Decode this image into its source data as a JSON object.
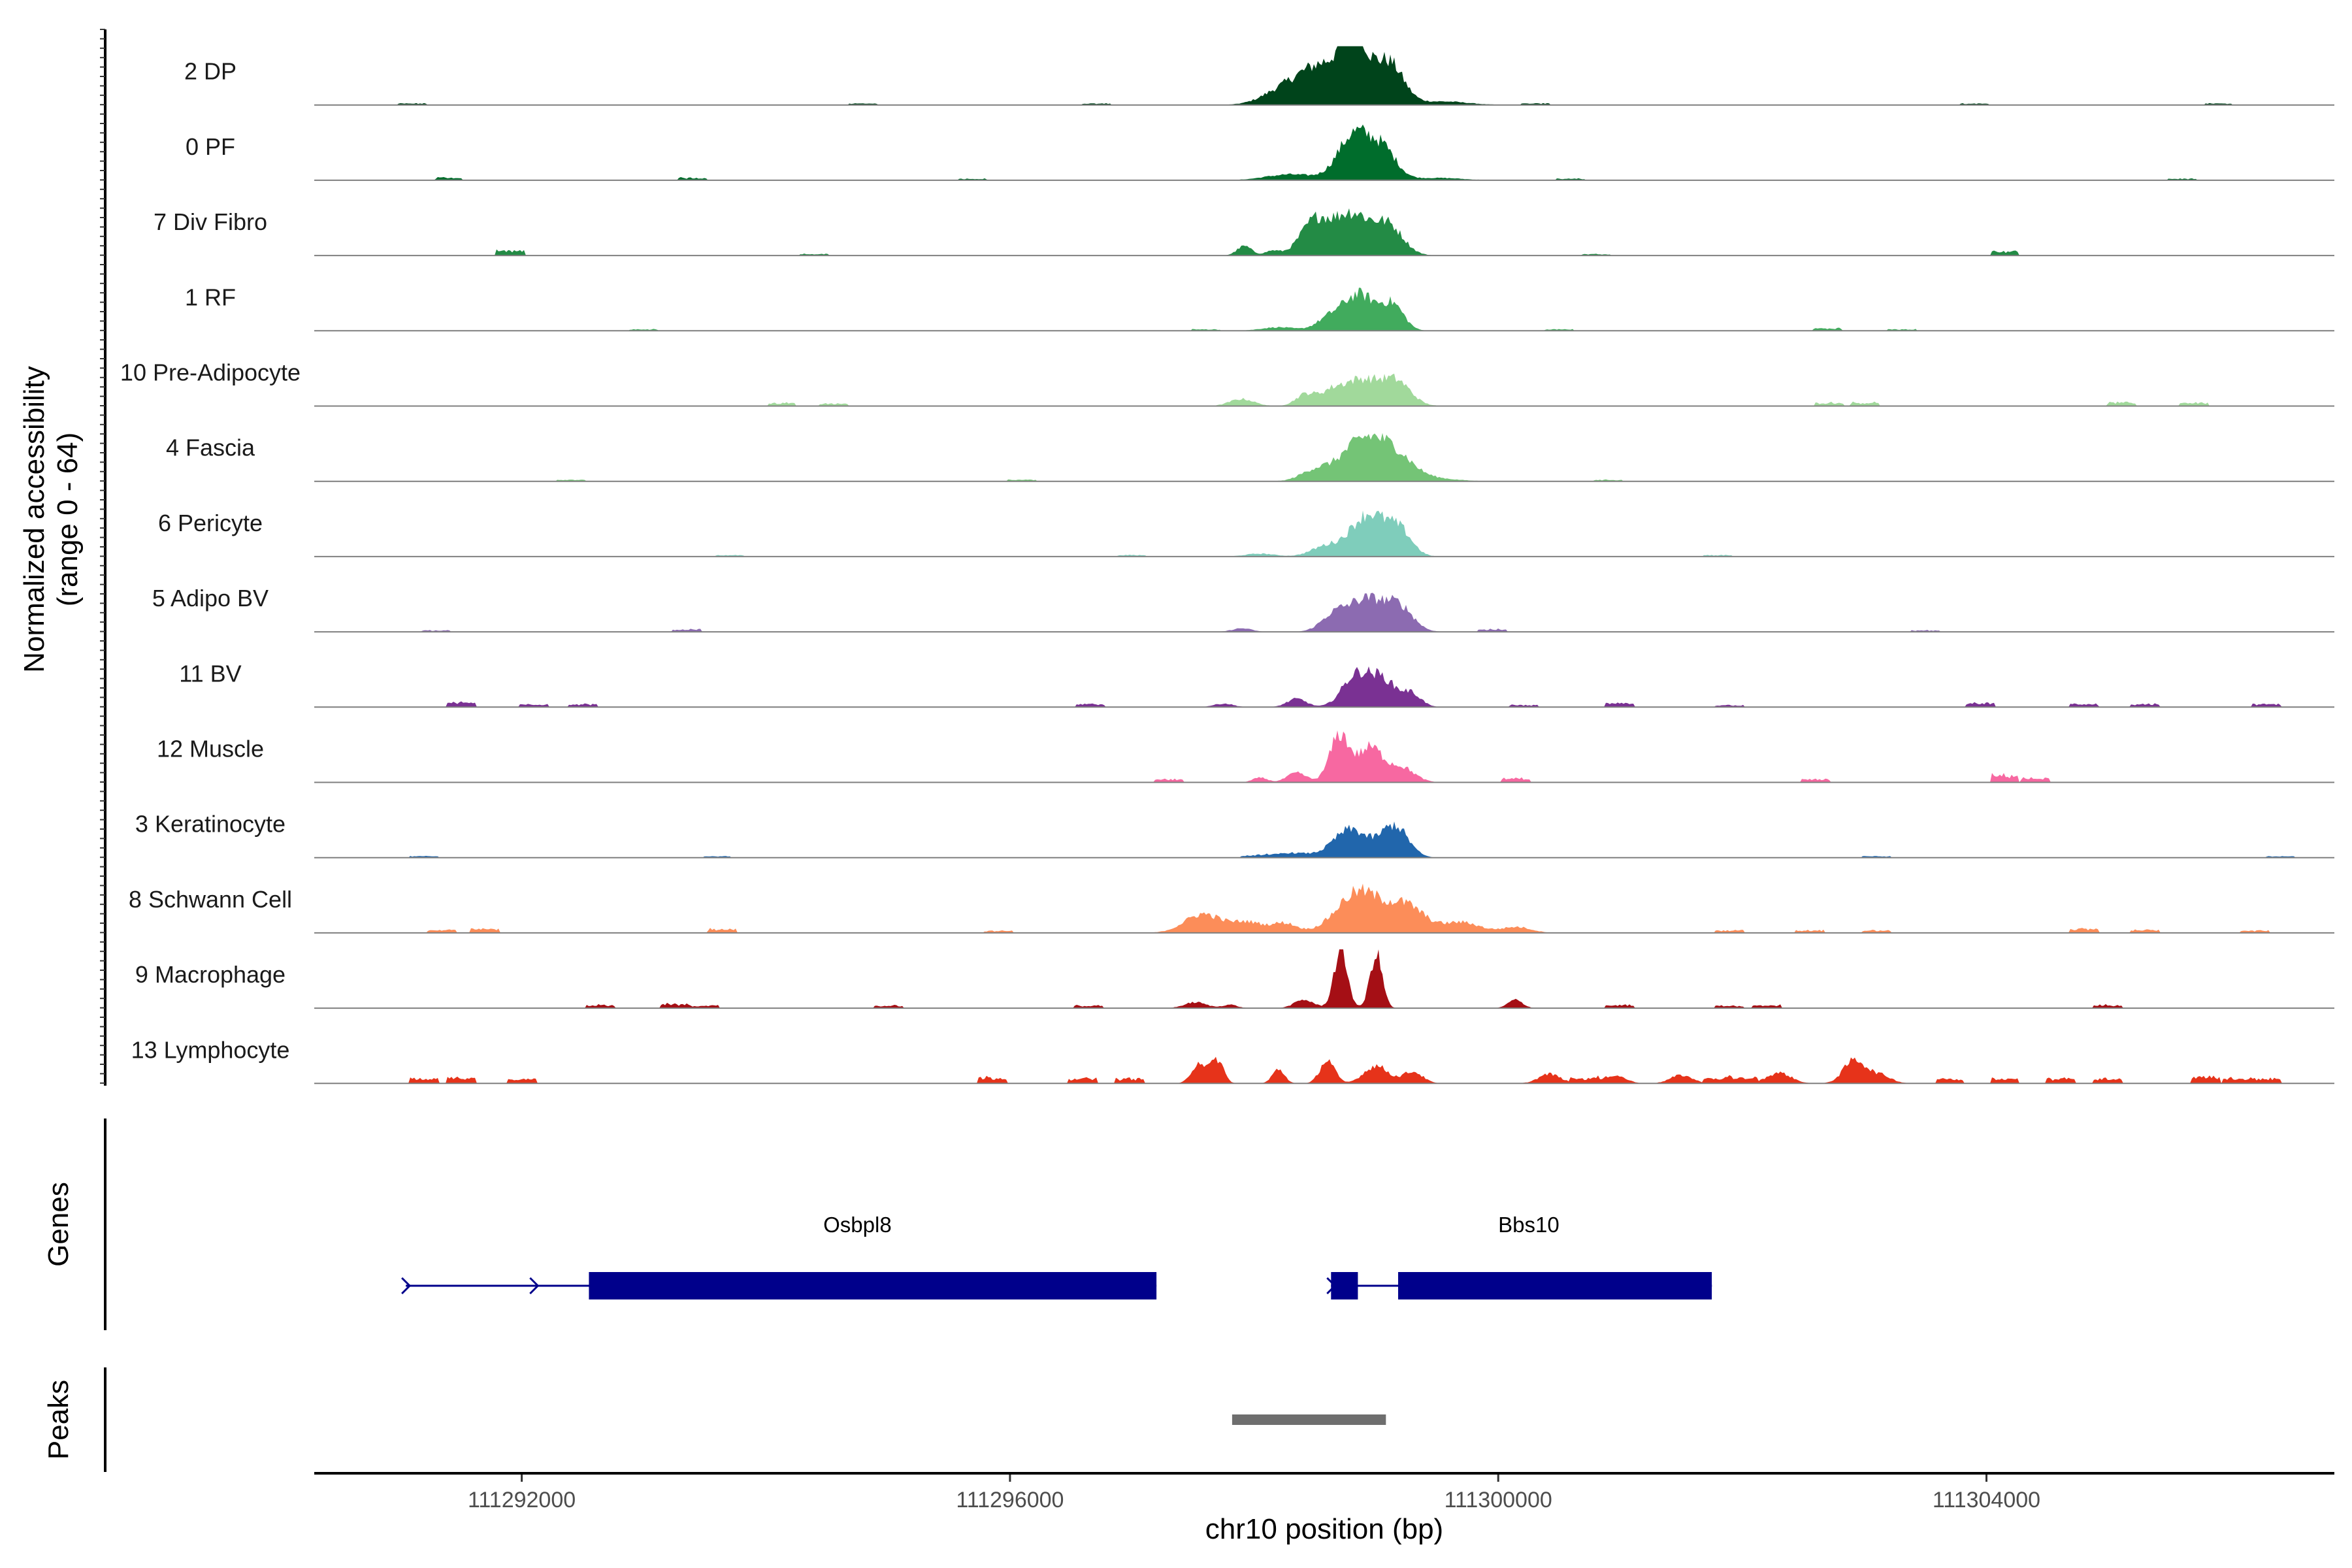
{
  "chart_data": {
    "type": "area",
    "title": "",
    "ylabel_line1": "Normalized accessibility",
    "ylabel_line2": "(range 0 - 64)",
    "yrange": [
      0,
      64
    ],
    "xlabel": "chr10 position (bp)",
    "xlim": [
      111290300,
      111306850
    ],
    "xticks": [
      {
        "value": 111292000,
        "label": "111292000"
      },
      {
        "value": 111296000,
        "label": "111296000"
      },
      {
        "value": 111300000,
        "label": "111300000"
      },
      {
        "value": 111304000,
        "label": "111304000"
      }
    ],
    "tracks": [
      {
        "name": "2 DP",
        "color": "#00441b",
        "peaks": [
          [
            111298580,
            70,
            230
          ],
          [
            111298820,
            94,
            95
          ],
          [
            111299100,
            70,
            120
          ],
          [
            111298200,
            14,
            160
          ],
          [
            111299550,
            6,
            200
          ]
        ],
        "noise": [
          [
            111291100,
            3
          ],
          [
            111294800,
            3
          ],
          [
            111296700,
            3
          ],
          [
            111300300,
            3
          ],
          [
            111303900,
            3
          ],
          [
            111305900,
            3
          ]
        ]
      },
      {
        "name": "0 PF",
        "color": "#006d2c",
        "peaks": [
          [
            111298820,
            78,
            130
          ],
          [
            111299060,
            48,
            110
          ],
          [
            111298300,
            10,
            200
          ],
          [
            111299500,
            4,
            200
          ]
        ],
        "noise": [
          [
            111291400,
            5
          ],
          [
            111293400,
            5
          ],
          [
            111295700,
            3
          ],
          [
            111300600,
            3
          ],
          [
            111305600,
            3
          ]
        ]
      },
      {
        "name": "7 Div Fibro",
        "color": "#238b45",
        "peaks": [
          [
            111298500,
            58,
            120
          ],
          [
            111298800,
            70,
            140
          ],
          [
            111299100,
            50,
            120
          ],
          [
            111297920,
            16,
            60
          ],
          [
            111298150,
            8,
            60
          ]
        ],
        "noise": [
          [
            111291900,
            9
          ],
          [
            111304150,
            9
          ],
          [
            111294400,
            3
          ],
          [
            111300800,
            3
          ]
        ]
      },
      {
        "name": "1 RF",
        "color": "#41ab5d",
        "peaks": [
          [
            111298860,
            62,
            140
          ],
          [
            111299140,
            40,
            90
          ],
          [
            111298600,
            16,
            100
          ],
          [
            111298200,
            6,
            140
          ]
        ],
        "noise": [
          [
            111293000,
            3
          ],
          [
            111297600,
            3
          ],
          [
            111300500,
            3
          ],
          [
            111302700,
            5
          ],
          [
            111303300,
            3
          ]
        ]
      },
      {
        "name": "10 Pre-Adipocyte",
        "color": "#a1d99b",
        "peaks": [
          [
            111298880,
            46,
            200
          ],
          [
            111299180,
            30,
            110
          ],
          [
            111297900,
            12,
            100
          ],
          [
            111298420,
            18,
            80
          ],
          [
            111298620,
            10,
            80
          ]
        ],
        "noise": [
          [
            111294130,
            6
          ],
          [
            111294550,
            5
          ],
          [
            111302720,
            7
          ],
          [
            111303000,
            7
          ],
          [
            111305100,
            7
          ],
          [
            111305700,
            7
          ]
        ]
      },
      {
        "name": "4 Fascia",
        "color": "#74c476",
        "peaks": [
          [
            111298880,
            66,
            170
          ],
          [
            111299150,
            40,
            150
          ],
          [
            111298500,
            18,
            120
          ],
          [
            111299450,
            5,
            200
          ]
        ],
        "noise": [
          [
            111292400,
            3
          ],
          [
            111296100,
            3
          ],
          [
            111300900,
            3
          ]
        ]
      },
      {
        "name": "6 Pericyte",
        "color": "#7fcdbb",
        "peaks": [
          [
            111298940,
            72,
            150
          ],
          [
            111299200,
            36,
            100
          ],
          [
            111298580,
            16,
            120
          ],
          [
            111298050,
            5,
            120
          ]
        ],
        "noise": [
          [
            111293700,
            3
          ],
          [
            111297000,
            3
          ],
          [
            111301800,
            3
          ]
        ]
      },
      {
        "name": "5 Adipo BV",
        "color": "#8c6bb1",
        "peaks": [
          [
            111298920,
            56,
            170
          ],
          [
            111299200,
            34,
            110
          ],
          [
            111298640,
            20,
            100
          ],
          [
            111297900,
            6,
            80
          ]
        ],
        "noise": [
          [
            111293350,
            5
          ],
          [
            111299950,
            5
          ],
          [
            111291300,
            3
          ],
          [
            111303500,
            3
          ]
        ]
      },
      {
        "name": "11 BV",
        "color": "#7a3193",
        "peaks": [
          [
            111298830,
            52,
            110
          ],
          [
            111299050,
            46,
            110
          ],
          [
            111299290,
            22,
            80
          ],
          [
            111298350,
            14,
            80
          ],
          [
            111297750,
            6,
            80
          ]
        ],
        "noise": [
          [
            111291500,
            9
          ],
          [
            111292100,
            6
          ],
          [
            111292500,
            6
          ],
          [
            111296660,
            6
          ],
          [
            111301000,
            8
          ],
          [
            111303950,
            8
          ],
          [
            111304800,
            6
          ],
          [
            111305300,
            6
          ],
          [
            111306300,
            6
          ],
          [
            111300200,
            4
          ],
          [
            111301900,
            4
          ]
        ]
      },
      {
        "name": "12 Muscle",
        "color": "#f768a1",
        "peaks": [
          [
            111298700,
            80,
            80
          ],
          [
            111298950,
            58,
            100
          ],
          [
            111299200,
            26,
            110
          ],
          [
            111298350,
            16,
            80
          ],
          [
            111298050,
            8,
            60
          ]
        ],
        "noise": [
          [
            111297300,
            6
          ],
          [
            111300150,
            8
          ],
          [
            111302600,
            6
          ],
          [
            111304150,
            14
          ],
          [
            111304400,
            8
          ]
        ]
      },
      {
        "name": "3 Keratinocyte",
        "color": "#2166ac",
        "peaks": [
          [
            111298790,
            48,
            140
          ],
          [
            111299150,
            54,
            110
          ],
          [
            111298300,
            8,
            160
          ]
        ],
        "noise": [
          [
            111291200,
            3
          ],
          [
            111293600,
            3
          ],
          [
            111298000,
            3
          ],
          [
            111303100,
            3
          ],
          [
            111306400,
            3
          ]
        ]
      },
      {
        "name": "8 Schwann Cell",
        "color": "#fc8d59",
        "peaks": [
          [
            111297580,
            32,
            150
          ],
          [
            111297950,
            18,
            130
          ],
          [
            111298250,
            16,
            100
          ],
          [
            111298860,
            70,
            180
          ],
          [
            111299250,
            44,
            150
          ],
          [
            111299700,
            18,
            150
          ],
          [
            111300150,
            10,
            120
          ]
        ],
        "noise": [
          [
            111291350,
            6
          ],
          [
            111291700,
            8
          ],
          [
            111293640,
            8
          ],
          [
            111295900,
            4
          ],
          [
            111301900,
            5
          ],
          [
            111302550,
            5
          ],
          [
            111303100,
            5
          ],
          [
            111304800,
            8
          ],
          [
            111305300,
            6
          ],
          [
            111306200,
            5
          ]
        ]
      },
      {
        "name": "9 Macrophage",
        "color": "#a50f15",
        "peaks": [
          [
            111298710,
            100,
            55
          ],
          [
            111299000,
            92,
            50
          ],
          [
            111298410,
            14,
            80
          ],
          [
            111297520,
            10,
            90
          ],
          [
            111297800,
            6,
            60
          ],
          [
            111300140,
            14,
            60
          ]
        ],
        "noise": [
          [
            111292650,
            6
          ],
          [
            111293250,
            8
          ],
          [
            111293500,
            5
          ],
          [
            111295000,
            5
          ],
          [
            111296650,
            5
          ],
          [
            111301000,
            6
          ],
          [
            111301900,
            5
          ],
          [
            111302200,
            6
          ],
          [
            111305000,
            6
          ]
        ]
      },
      {
        "name": "13 Lymphocyte",
        "color": "#e6331a",
        "peaks": [
          [
            111297550,
            36,
            60
          ],
          [
            111297700,
            40,
            50
          ],
          [
            111298200,
            24,
            50
          ],
          [
            111298600,
            40,
            60
          ],
          [
            111299000,
            30,
            100
          ],
          [
            111299300,
            20,
            80
          ],
          [
            111300420,
            16,
            90
          ],
          [
            111300950,
            14,
            90
          ],
          [
            111301500,
            14,
            90
          ],
          [
            111302300,
            18,
            100
          ],
          [
            111302920,
            40,
            90
          ],
          [
            111303130,
            14,
            90
          ]
        ],
        "noise": [
          [
            111291200,
            10
          ],
          [
            111291500,
            12
          ],
          [
            111292000,
            10
          ],
          [
            111295850,
            12
          ],
          [
            111296600,
            10
          ],
          [
            111296980,
            10
          ],
          [
            111300700,
            10
          ],
          [
            111301800,
            10
          ],
          [
            111302000,
            10
          ],
          [
            111303700,
            10
          ],
          [
            111304150,
            10
          ],
          [
            111304600,
            10
          ],
          [
            111305000,
            10
          ],
          [
            111305800,
            14
          ],
          [
            111306050,
            10
          ],
          [
            111306300,
            10
          ]
        ]
      }
    ],
    "genes": [
      {
        "name": "Osbpl8",
        "label_x": 111294750,
        "start": 111291050,
        "end": 111297200,
        "exons": [
          [
            111292550,
            111297200
          ]
        ],
        "arrows": [
          111291050,
          111292100
        ]
      },
      {
        "name": "Bbs10",
        "label_x": 111300250,
        "start": 111298630,
        "end": 111301750,
        "exons": [
          [
            111298630,
            111298850
          ],
          [
            111299180,
            111301750
          ]
        ],
        "arrows": [
          111298630
        ]
      }
    ],
    "peaks_track": [
      [
        111297820,
        111299080
      ]
    ],
    "panel_labels": {
      "genes": "Genes",
      "peaks": "Peaks"
    },
    "colors": {
      "gene": "#00008b",
      "peak": "#6e6e6e",
      "baseline": "#7f7f7f",
      "axis": "#000000"
    }
  }
}
